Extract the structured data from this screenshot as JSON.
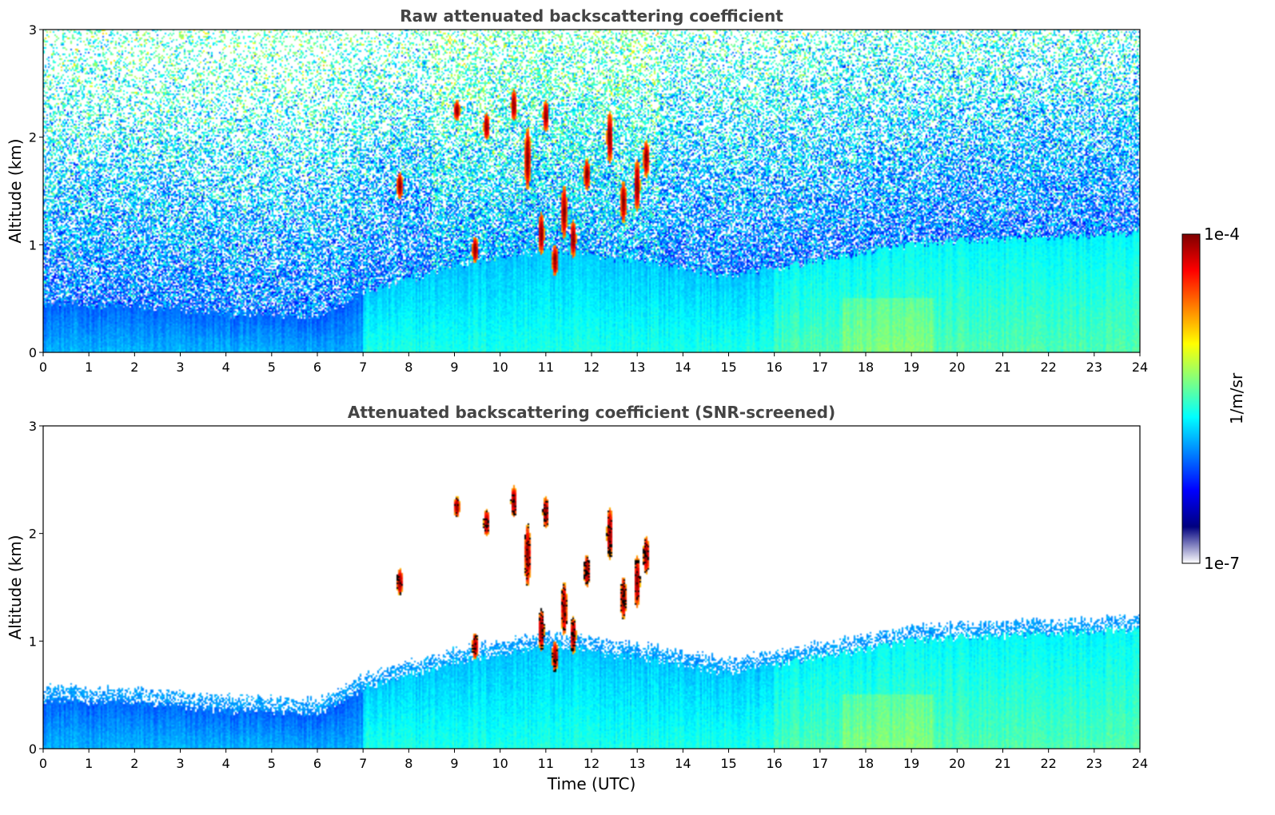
{
  "chart_data": [
    {
      "type": "heatmap",
      "title": "Raw attenuated backscattering coefficient",
      "xlabel": "",
      "ylabel": "Altitude (km)",
      "xlim": [
        0,
        24
      ],
      "ylim": [
        0,
        3
      ],
      "x_ticks": [
        "0",
        "1",
        "2",
        "3",
        "4",
        "5",
        "6",
        "7",
        "8",
        "9",
        "10",
        "11",
        "12",
        "13",
        "14",
        "15",
        "16",
        "17",
        "18",
        "19",
        "20",
        "21",
        "22",
        "23",
        "24"
      ],
      "y_ticks": [
        "0",
        "1",
        "2",
        "3"
      ],
      "screened": false,
      "boundary_layer_top_km": [
        {
          "t": 0,
          "h": 0.45
        },
        {
          "t": 2,
          "h": 0.42
        },
        {
          "t": 4,
          "h": 0.35
        },
        {
          "t": 6,
          "h": 0.33
        },
        {
          "t": 7,
          "h": 0.55
        },
        {
          "t": 9,
          "h": 0.8
        },
        {
          "t": 11,
          "h": 0.95
        },
        {
          "t": 13,
          "h": 0.85
        },
        {
          "t": 15,
          "h": 0.7
        },
        {
          "t": 17,
          "h": 0.85
        },
        {
          "t": 19,
          "h": 1.0
        },
        {
          "t": 21,
          "h": 1.05
        },
        {
          "t": 24,
          "h": 1.1
        }
      ],
      "clouds": [
        {
          "t": 7.8,
          "h": 1.55,
          "dh": 0.25
        },
        {
          "t": 9.05,
          "h": 2.25,
          "dh": 0.2
        },
        {
          "t": 9.45,
          "h": 0.95,
          "dh": 0.25
        },
        {
          "t": 9.7,
          "h": 2.1,
          "dh": 0.25
        },
        {
          "t": 10.3,
          "h": 2.3,
          "dh": 0.3
        },
        {
          "t": 10.6,
          "h": 1.8,
          "dh": 0.6
        },
        {
          "t": 10.9,
          "h": 1.1,
          "dh": 0.4
        },
        {
          "t": 11.0,
          "h": 2.2,
          "dh": 0.3
        },
        {
          "t": 11.2,
          "h": 0.85,
          "dh": 0.3
        },
        {
          "t": 11.4,
          "h": 1.3,
          "dh": 0.5
        },
        {
          "t": 11.6,
          "h": 1.05,
          "dh": 0.35
        },
        {
          "t": 11.9,
          "h": 1.65,
          "dh": 0.3
        },
        {
          "t": 12.4,
          "h": 2.0,
          "dh": 0.5
        },
        {
          "t": 12.7,
          "h": 1.4,
          "dh": 0.4
        },
        {
          "t": 13.0,
          "h": 1.55,
          "dh": 0.5
        },
        {
          "t": 13.2,
          "h": 1.8,
          "dh": 0.35
        }
      ]
    },
    {
      "type": "heatmap",
      "title": "Attenuated backscattering coefficient (SNR-screened)",
      "xlabel": "Time (UTC)",
      "ylabel": "Altitude (km)",
      "xlim": [
        0,
        24
      ],
      "ylim": [
        0,
        3
      ],
      "x_ticks": [
        "0",
        "1",
        "2",
        "3",
        "4",
        "5",
        "6",
        "7",
        "8",
        "9",
        "10",
        "11",
        "12",
        "13",
        "14",
        "15",
        "16",
        "17",
        "18",
        "19",
        "20",
        "21",
        "22",
        "23",
        "24"
      ],
      "y_ticks": [
        "0",
        "1",
        "2",
        "3"
      ],
      "screened": true
    }
  ],
  "colorbar": {
    "min_label": "1e-7",
    "max_label": "1e-4",
    "unit_label": "1/m/sr",
    "colormap": "jet",
    "colors": [
      "#ffffff",
      "#00007f",
      "#0000ff",
      "#0080ff",
      "#00ffff",
      "#80ff80",
      "#ffff00",
      "#ff8000",
      "#ff0000",
      "#7f0000"
    ]
  }
}
